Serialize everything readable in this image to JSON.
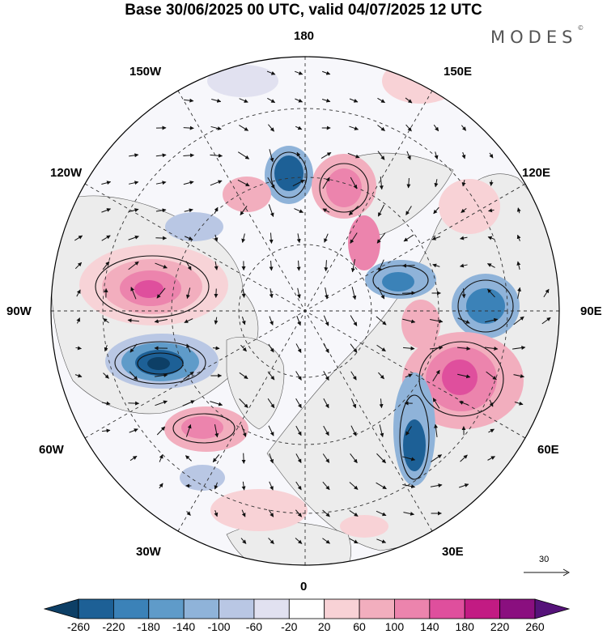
{
  "title": "Base 30/06/2025 00 UTC, valid 04/07/2025 12 UTC",
  "brand": "MODES",
  "brand_mark": "©",
  "longitude_labels": {
    "lon_180": "180",
    "lon_150w": "150W",
    "lon_150e": "150E",
    "lon_120w": "120W",
    "lon_120e": "120E",
    "lon_90w": "90W",
    "lon_90e": "90E",
    "lon_60w": "60W",
    "lon_60e": "60E",
    "lon_30w": "30W",
    "lon_30e": "30E",
    "lon_0": "0"
  },
  "reference_vector": {
    "label": "30"
  },
  "colorbar": {
    "ticks": [
      "-260",
      "-220",
      "-180",
      "-140",
      "-100",
      "-60",
      "-20",
      "20",
      "60",
      "100",
      "140",
      "180",
      "220",
      "260"
    ],
    "colors": [
      "#0d3f66",
      "#1d6096",
      "#3b82b8",
      "#5f9bc9",
      "#8fb3d9",
      "#b9c7e4",
      "#e1e1f0",
      "#ffffff",
      "#f8d2d6",
      "#f2aebe",
      "#ec84ad",
      "#df4f9d",
      "#c21b83",
      "#8a0f7f",
      "#56137a"
    ]
  },
  "colors": {
    "land": "#ececec",
    "positive_anomaly": "#e07aa8",
    "negative_anomaly": "#4a8fc4"
  }
}
